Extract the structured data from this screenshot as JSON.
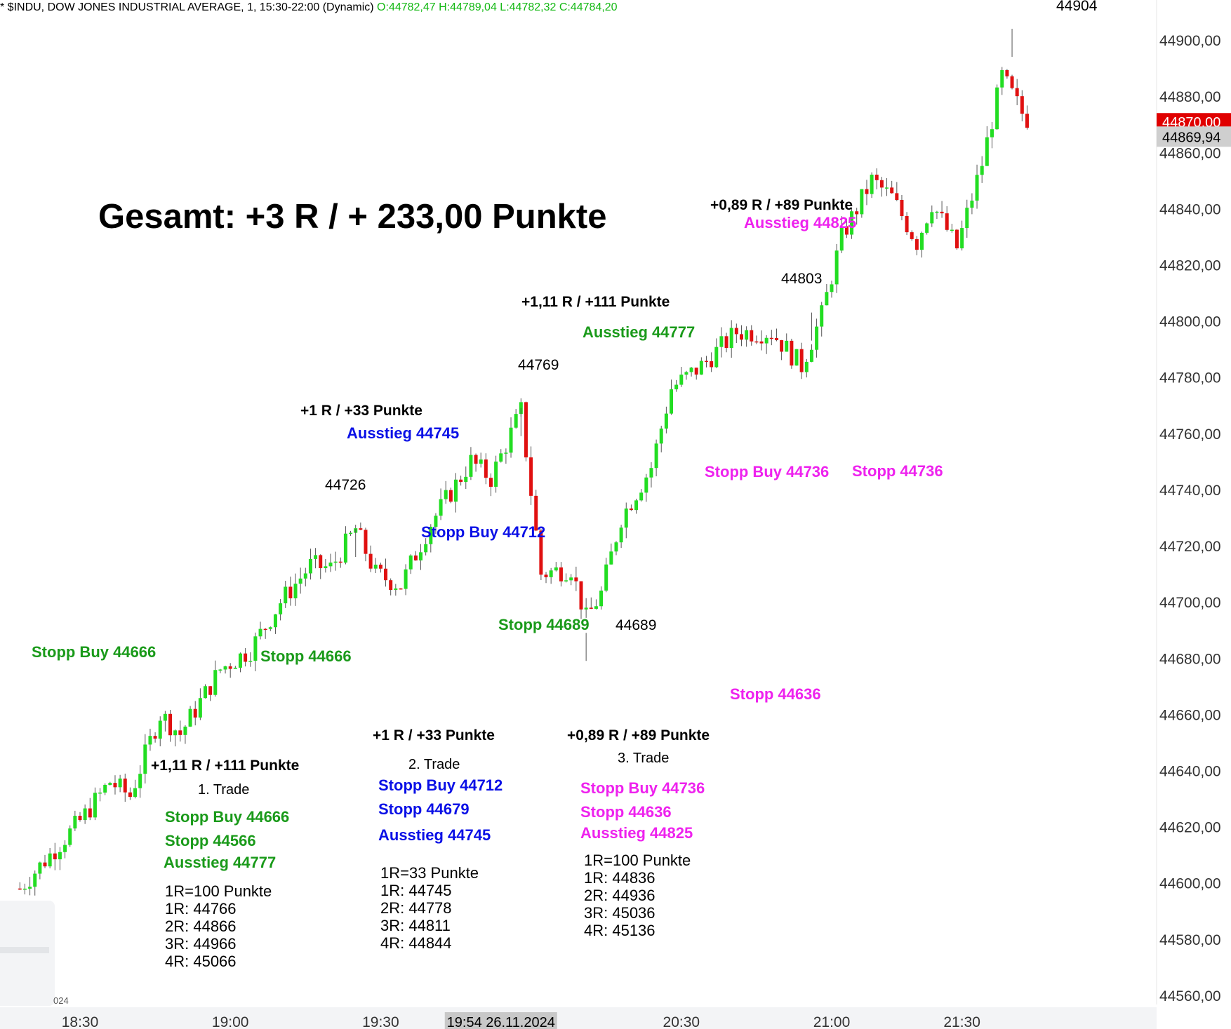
{
  "header": {
    "symbol_text": "* $INDU, DOW JONES INDUSTRIAL AVERAGE, 1, 15:30-22:00 (Dynamic)",
    "ohlc_text": "O:44782,47 H:44789,04 L:44782,32 C:44784,20"
  },
  "colors": {
    "up": "#22dd22",
    "down": "#e01010",
    "green_text": "#1a9a1a",
    "blue_text": "#0a10e6",
    "magenta_text": "#ee22ee",
    "price_tag_red": "#e00000",
    "price_tag_gray": "#cfcfcf"
  },
  "chart_data": {
    "type": "candlestick",
    "title": "Gesamt: +3 R / + 233,00 Punkte",
    "ylim": [
      44548,
      44914
    ],
    "y_ticks": [
      "44900,00",
      "44880,00",
      "44860,00",
      "44840,00",
      "44820,00",
      "44800,00",
      "44780,00",
      "44760,00",
      "44740,00",
      "44720,00",
      "44700,00",
      "44680,00",
      "44660,00",
      "44640,00",
      "44620,00",
      "44600,00",
      "44580,00",
      "44560,00"
    ],
    "x_ticks": [
      "18:30",
      "19:00",
      "19:30",
      "20:30",
      "21:00",
      "21:30"
    ],
    "x_tick_positions_minutes": [
      0,
      30,
      60,
      120,
      150,
      176
    ],
    "crosshair_time_label": "19:54 26.11.2024",
    "crosshair_minute": 84,
    "price_tags": {
      "last_red": "44870,00",
      "current_gray": "44869,94"
    },
    "price_tag_values": [
      44871,
      44866
    ],
    "peak_labels": [
      {
        "label": "44904",
        "price": 44904
      },
      {
        "label": "44803",
        "price": 44803
      },
      {
        "label": "44769",
        "price": 44769
      },
      {
        "label": "44726",
        "price": 44726
      },
      {
        "label": "44689",
        "price": 44689
      }
    ],
    "anchors": [
      {
        "minute": -12,
        "price": 44598
      },
      {
        "minute": 0,
        "price": 44622
      },
      {
        "minute": 6,
        "price": 44636
      },
      {
        "minute": 10,
        "price": 44631
      },
      {
        "minute": 16,
        "price": 44660
      },
      {
        "minute": 20,
        "price": 44653
      },
      {
        "minute": 28,
        "price": 44676
      },
      {
        "minute": 34,
        "price": 44683
      },
      {
        "minute": 40,
        "price": 44700
      },
      {
        "minute": 46,
        "price": 44713
      },
      {
        "minute": 50,
        "price": 44712
      },
      {
        "minute": 55,
        "price": 44726
      },
      {
        "minute": 59,
        "price": 44710
      },
      {
        "minute": 64,
        "price": 44706
      },
      {
        "minute": 70,
        "price": 44728
      },
      {
        "minute": 78,
        "price": 44750
      },
      {
        "minute": 82,
        "price": 44744
      },
      {
        "minute": 88,
        "price": 44768
      },
      {
        "minute": 92,
        "price": 44710
      },
      {
        "minute": 98,
        "price": 44712
      },
      {
        "minute": 101,
        "price": 44694
      },
      {
        "minute": 104,
        "price": 44703
      },
      {
        "minute": 108,
        "price": 44730
      },
      {
        "minute": 114,
        "price": 44748
      },
      {
        "minute": 118,
        "price": 44776
      },
      {
        "minute": 124,
        "price": 44784
      },
      {
        "minute": 131,
        "price": 44796
      },
      {
        "minute": 138,
        "price": 44796
      },
      {
        "minute": 144,
        "price": 44784
      },
      {
        "minute": 148,
        "price": 44802
      },
      {
        "minute": 152,
        "price": 44830
      },
      {
        "minute": 158,
        "price": 44850
      },
      {
        "minute": 162,
        "price": 44844
      },
      {
        "minute": 167,
        "price": 44828
      },
      {
        "minute": 170,
        "price": 44842
      },
      {
        "minute": 175,
        "price": 44826
      },
      {
        "minute": 180,
        "price": 44856
      },
      {
        "minute": 184,
        "price": 44887
      },
      {
        "minute": 188,
        "price": 44874
      },
      {
        "minute": 190,
        "price": 44870
      }
    ]
  },
  "annotations": {
    "gesamt": "Gesamt: +3 R / + 233,00 Punkte",
    "chart_labels": [
      {
        "text": "Stopp Buy 44666",
        "color": "green"
      },
      {
        "text": "Stopp 44666",
        "color": "green"
      },
      {
        "text": "+1 R / +33 Punkte",
        "color": "black"
      },
      {
        "text": "Ausstieg 44745",
        "color": "blue"
      },
      {
        "text": "Stopp Buy 44712",
        "color": "blue"
      },
      {
        "text": "+1,11 R / +111 Punkte",
        "color": "black"
      },
      {
        "text": "Ausstieg 44777",
        "color": "green"
      },
      {
        "text": "Stopp 44689",
        "color": "green"
      },
      {
        "text": "+0,89 R / +89 Punkte",
        "color": "black"
      },
      {
        "text": "Ausstieg 44825",
        "color": "magenta"
      },
      {
        "text": "Stopp Buy 44736",
        "color": "magenta"
      },
      {
        "text": "Stopp 44736",
        "color": "magenta"
      },
      {
        "text": "Stopp 44636",
        "color": "magenta"
      }
    ]
  },
  "trades": [
    {
      "result": "+1,11 R / +111 Punkte",
      "name": "1. Trade",
      "entry": "Stopp Buy 44666",
      "stop": "Stopp 44566",
      "exit": "Ausstieg 44777",
      "r_unit": "1R=100 Punkte",
      "levels": [
        "1R: 44766",
        "2R: 44866",
        "3R: 44966",
        "4R: 45066"
      ]
    },
    {
      "result": "+1 R / +33 Punkte",
      "name": "2. Trade",
      "entry": "Stopp Buy 44712",
      "stop": "Stopp 44679",
      "exit": "Ausstieg 44745",
      "r_unit": "1R=33 Punkte",
      "levels": [
        "1R: 44745",
        "2R: 44778",
        "3R: 44811",
        "4R: 44844"
      ]
    },
    {
      "result": "+0,89 R / +89 Punkte",
      "name": "3. Trade",
      "entry": "Stopp Buy 44736",
      "stop": "Stopp 44636",
      "exit": "Ausstieg 44825",
      "r_unit": "1R=100 Punkte",
      "levels": [
        "1R: 44836",
        "2R: 44936",
        "3R: 45036",
        "4R: 45136"
      ]
    }
  ],
  "panel": {
    "partial_date": "024"
  }
}
